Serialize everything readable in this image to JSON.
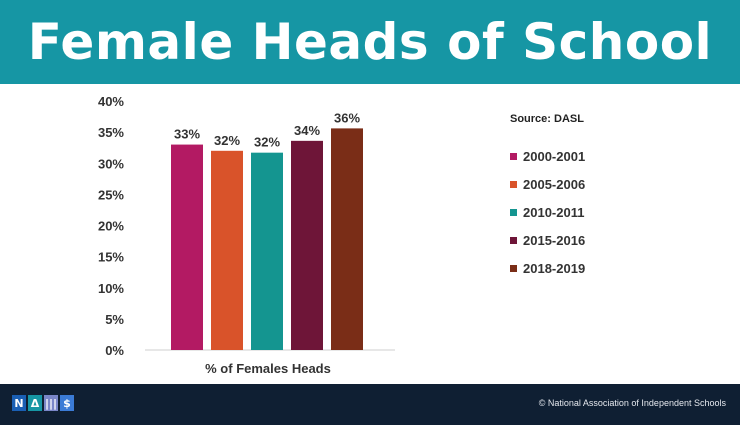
{
  "header": {
    "title": "Female Heads of School"
  },
  "source_label": "Source: DASL",
  "footer": {
    "logo_letters": [
      "N",
      "Δ",
      "|||",
      "$"
    ],
    "logo_colors": [
      "#1a5fb4",
      "#1696a4",
      "#7a86c8",
      "#3b7bd6"
    ],
    "copyright": "© National Association of Independent Schools"
  },
  "chart_data": {
    "type": "bar",
    "title": "",
    "xlabel": "% of Females Heads",
    "ylabel": "",
    "ylim": [
      0,
      40
    ],
    "yticks": [
      "0%",
      "5%",
      "10%",
      "15%",
      "20%",
      "25%",
      "30%",
      "35%",
      "40%"
    ],
    "grid": false,
    "legend_position": "right",
    "series": [
      {
        "name": "2000-2001",
        "value": 33,
        "label": "33%",
        "color": "#b31a63"
      },
      {
        "name": "2005-2006",
        "value": 32,
        "label": "32%",
        "color": "#d9532a"
      },
      {
        "name": "2010-2011",
        "value": 31.7,
        "label": "32%",
        "color": "#149590"
      },
      {
        "name": "2015-2016",
        "value": 33.6,
        "label": "34%",
        "color": "#6e1538"
      },
      {
        "name": "2018-2019",
        "value": 35.6,
        "label": "36%",
        "color": "#7a2d17"
      }
    ]
  }
}
